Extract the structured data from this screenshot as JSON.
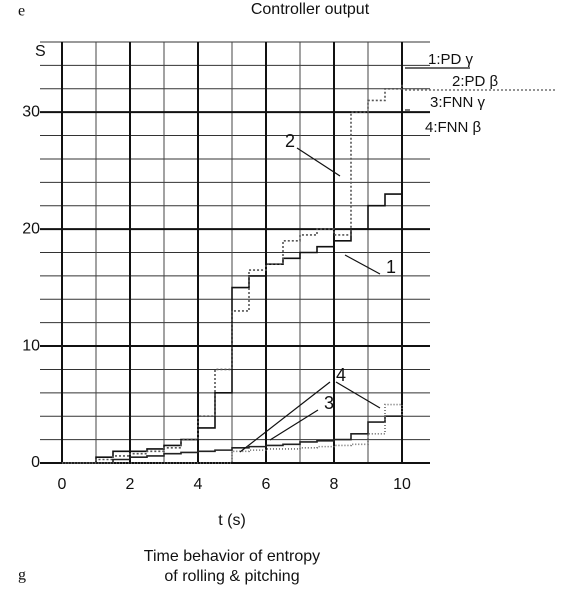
{
  "chart_data": {
    "type": "line",
    "title": "Controller output",
    "corner_top": "e",
    "corner_bottom": "g",
    "caption": [
      "Time behavior of entropy",
      "of rolling & pitching"
    ],
    "xlabel": "t (s)",
    "ylabel": "S",
    "x": [
      0,
      0.5,
      1,
      1.5,
      2,
      2.5,
      3,
      3.5,
      4,
      4.5,
      5,
      5.5,
      6,
      6.5,
      7,
      7.5,
      8,
      8.5,
      9,
      9.5,
      10
    ],
    "series": [
      {
        "name": "1:PD γ",
        "color": "#111111",
        "dash": "none",
        "values": [
          0,
          0,
          0.5,
          1,
          1,
          1.2,
          1.5,
          2,
          3,
          6,
          15,
          16,
          17,
          17.5,
          18,
          18.5,
          19,
          20,
          22,
          23,
          23
        ]
      },
      {
        "name": "2:PD β",
        "color": "#555555",
        "dash": "2 2",
        "values": [
          0,
          0,
          0.3,
          0.6,
          0.8,
          1,
          1.3,
          2,
          4,
          8,
          13,
          16.5,
          17,
          19,
          19.5,
          20,
          19.5,
          30,
          31,
          32,
          32.5
        ]
      },
      {
        "name": "3:FNN γ",
        "color": "#222222",
        "dash": "none",
        "values": [
          0,
          0,
          0,
          0.3,
          0.5,
          0.6,
          0.8,
          0.9,
          1,
          1.1,
          1.3,
          1.4,
          1.5,
          1.6,
          1.8,
          1.9,
          2,
          2.5,
          3.5,
          4,
          4
        ]
      },
      {
        "name": "4:FNN β",
        "color": "#666666",
        "dash": "1 2",
        "values": [
          0,
          0,
          0,
          0,
          0,
          0,
          0,
          0,
          0,
          0,
          1,
          1.1,
          1.2,
          1.2,
          1.3,
          1.4,
          1.5,
          1.6,
          2.5,
          5,
          4
        ]
      }
    ],
    "annotations": [
      "1",
      "2",
      "3",
      "4"
    ],
    "xlim": [
      0,
      10
    ],
    "ylim": [
      0,
      36
    ],
    "xticks": [
      0,
      2,
      4,
      6,
      8,
      10
    ],
    "yticks": [
      0,
      10,
      20,
      30
    ],
    "xgrid": [
      1,
      3,
      5,
      7,
      9
    ],
    "ygrid": [
      2,
      4,
      6,
      8,
      12,
      14,
      16,
      18,
      22,
      24,
      26,
      28,
      32,
      34,
      36
    ],
    "grid": true
  }
}
